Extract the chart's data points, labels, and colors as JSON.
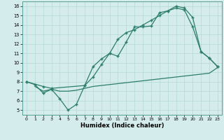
{
  "line1_x": [
    0,
    1,
    2,
    3,
    4,
    5,
    6,
    7,
    8,
    9,
    10,
    11,
    12,
    13,
    14,
    15,
    16,
    17,
    18,
    19,
    20,
    21,
    22,
    23
  ],
  "line1_y": [
    8.0,
    7.7,
    6.8,
    7.2,
    6.2,
    5.0,
    5.6,
    7.6,
    9.6,
    10.4,
    11.0,
    10.7,
    12.2,
    13.8,
    13.8,
    13.9,
    15.3,
    15.5,
    15.8,
    15.6,
    13.8,
    11.2,
    10.5,
    9.6
  ],
  "line2_x": [
    0,
    2,
    3,
    7,
    8,
    9,
    10,
    11,
    12,
    13,
    14,
    15,
    16,
    17,
    18,
    19,
    20,
    21,
    22,
    23
  ],
  "line2_y": [
    8.0,
    7.5,
    7.3,
    7.6,
    8.5,
    9.8,
    11.0,
    12.5,
    13.2,
    13.5,
    14.0,
    14.5,
    15.0,
    15.5,
    16.0,
    15.8,
    14.8,
    11.2,
    10.5,
    9.6
  ],
  "line3_x": [
    1,
    2,
    3,
    4,
    5,
    6,
    7,
    8,
    9,
    10,
    11,
    12,
    13,
    14,
    15,
    16,
    17,
    18,
    19,
    20,
    21,
    22,
    23
  ],
  "line3_y": [
    7.5,
    7.0,
    7.2,
    7.0,
    7.0,
    7.1,
    7.3,
    7.5,
    7.6,
    7.7,
    7.8,
    7.9,
    8.0,
    8.1,
    8.2,
    8.3,
    8.4,
    8.5,
    8.6,
    8.7,
    8.8,
    8.9,
    9.5
  ],
  "line_color": "#2d7d6e",
  "bg_color": "#d4eceb",
  "grid_color": "#b5d8d5",
  "xlabel": "Humidex (Indice chaleur)",
  "xlim": [
    -0.5,
    23.5
  ],
  "ylim": [
    4.5,
    16.5
  ],
  "xticks": [
    0,
    1,
    2,
    3,
    4,
    5,
    6,
    7,
    8,
    9,
    10,
    11,
    12,
    13,
    14,
    15,
    16,
    17,
    18,
    19,
    20,
    21,
    22,
    23
  ],
  "yticks": [
    5,
    6,
    7,
    8,
    9,
    10,
    11,
    12,
    13,
    14,
    15,
    16
  ]
}
